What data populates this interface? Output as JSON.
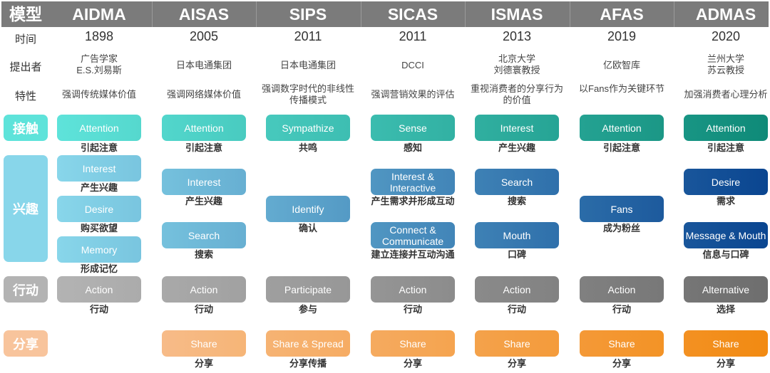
{
  "row_labels": {
    "model": "模型",
    "time": "时间",
    "proposer": "提出者",
    "feature": "特性"
  },
  "stages": {
    "contact": {
      "label": "接触",
      "color_start": "#5ee3da",
      "color_end": "#0f8a78"
    },
    "interest": {
      "label": "兴趣",
      "color_start": "#88d6ea",
      "color_end": "#0a4590"
    },
    "action": {
      "label": "行动",
      "color_start": "#b3b3b3",
      "color_end": "#6e6e6e"
    },
    "share": {
      "label": "分享",
      "color_start": "#f8c49c",
      "color_end": "#f28a12"
    }
  },
  "models": [
    {
      "name": "AIDMA",
      "year": "1898",
      "proposer": "广告学家\nE.S.刘易斯",
      "feature": "强调传统媒体价值",
      "contact": {
        "en": "Attention",
        "zh": "引起注意"
      },
      "interest": [
        {
          "en": "Interest",
          "zh": "产生兴趣"
        },
        {
          "en": "Desire",
          "zh": "购买欲望"
        },
        {
          "en": "Memory",
          "zh": "形成记忆"
        }
      ],
      "action": {
        "en": "Action",
        "zh": "行动"
      },
      "share": null
    },
    {
      "name": "AISAS",
      "year": "2005",
      "proposer": "日本电通集团",
      "feature": "强调网络媒体价值",
      "contact": {
        "en": "Attention",
        "zh": "引起注意"
      },
      "interest": [
        {
          "en": "Interest",
          "zh": "产生兴趣"
        },
        {
          "en": "Search",
          "zh": "搜索"
        }
      ],
      "action": {
        "en": "Action",
        "zh": "行动"
      },
      "share": {
        "en": "Share",
        "zh": "分享"
      }
    },
    {
      "name": "SIPS",
      "year": "2011",
      "proposer": "日本电通集团",
      "feature": "强调数字时代的非线性传播模式",
      "contact": {
        "en": "Sympathize",
        "zh": "共鸣"
      },
      "interest": [
        {
          "en": "Identify",
          "zh": "确认"
        }
      ],
      "action": {
        "en": "Participate",
        "zh": "参与"
      },
      "share": {
        "en": "Share & Spread",
        "zh": "分享传播"
      }
    },
    {
      "name": "SICAS",
      "year": "2011",
      "proposer": "DCCI",
      "feature": "强调营销效果的评估",
      "contact": {
        "en": "Sense",
        "zh": "感知"
      },
      "interest": [
        {
          "en": "Interest & Interactive",
          "zh": "产生需求并形成互动"
        },
        {
          "en": "Connect & Communicate",
          "zh": "建立连接并互动沟通"
        }
      ],
      "action": {
        "en": "Action",
        "zh": "行动"
      },
      "share": {
        "en": "Share",
        "zh": "分享"
      }
    },
    {
      "name": "ISMAS",
      "year": "2013",
      "proposer": "北京大学\n刘德寰教授",
      "feature": "重视消费者的分享行为的价值",
      "contact": {
        "en": "Interest",
        "zh": "产生兴趣"
      },
      "interest": [
        {
          "en": "Search",
          "zh": "搜索"
        },
        {
          "en": "Mouth",
          "zh": "口碑"
        }
      ],
      "action": {
        "en": "Action",
        "zh": "行动"
      },
      "share": {
        "en": "Share",
        "zh": "分享"
      }
    },
    {
      "name": "AFAS",
      "year": "2019",
      "proposer": "亿欧智库",
      "feature": "以Fans作为关键环节",
      "contact": {
        "en": "Attention",
        "zh": "引起注意"
      },
      "interest": [
        {
          "en": "Fans",
          "zh": "成为粉丝"
        }
      ],
      "action": {
        "en": "Action",
        "zh": "行动"
      },
      "share": {
        "en": "Share",
        "zh": "分享"
      }
    },
    {
      "name": "ADMAS",
      "year": "2020",
      "proposer": "兰州大学\n苏云教授",
      "feature": "加强消费者心理分析",
      "contact": {
        "en": "Attention",
        "zh": "引起注意"
      },
      "interest": [
        {
          "en": "Desire",
          "zh": "需求"
        },
        {
          "en": "Message & Mouth",
          "zh": "信息与口碑"
        }
      ],
      "action": {
        "en": "Alternative",
        "zh": "选择"
      },
      "share": {
        "en": "Share",
        "zh": "分享"
      }
    }
  ]
}
